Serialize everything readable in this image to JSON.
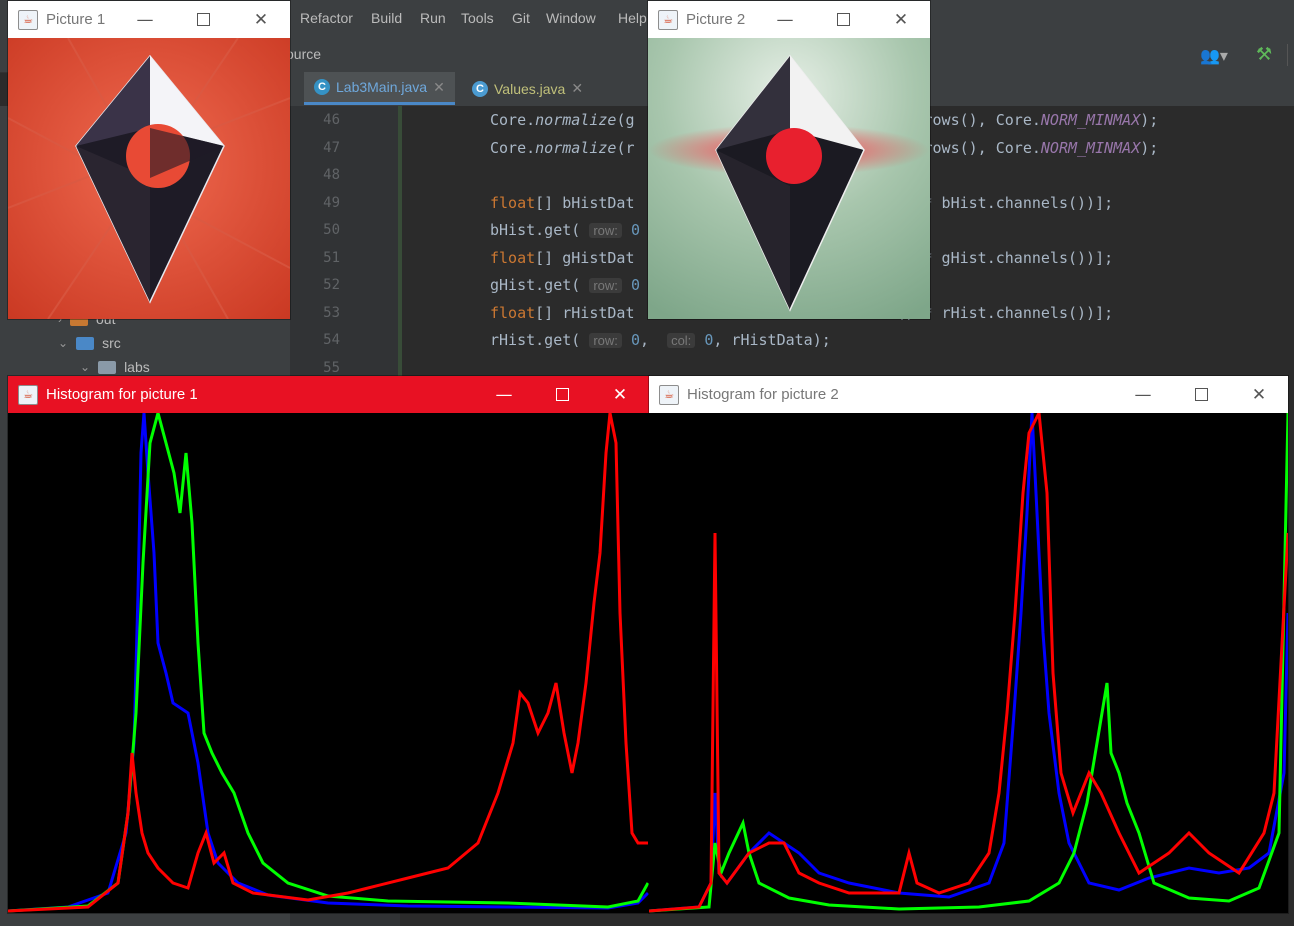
{
  "ide": {
    "menu": [
      "Refactor",
      "Build",
      "Run",
      "Tools",
      "Git",
      "Window",
      "Help"
    ],
    "breadcrumb": "ource",
    "tabs": [
      {
        "label": "Lab3Main.java",
        "active": true
      },
      {
        "label": "Values.java",
        "active": false
      }
    ],
    "project_tree": [
      {
        "label": "out",
        "level": 1,
        "expanded": false
      },
      {
        "label": "src",
        "level": 1,
        "expanded": true
      },
      {
        "label": "labs",
        "level": 2,
        "expanded": true
      }
    ],
    "line_numbers": [
      "46",
      "47",
      "48",
      "49",
      "50",
      "51",
      "52",
      "53",
      "54",
      "55"
    ]
  },
  "windows": {
    "picture1": {
      "title": "Picture 1"
    },
    "picture2": {
      "title": "Picture 2"
    },
    "hist1": {
      "title": "Histogram for picture 1"
    },
    "hist2": {
      "title": "Histogram for picture 2"
    }
  },
  "colors": {
    "accent_red": "#e81123",
    "ide_bg": "#2b2b2b",
    "panel_bg": "#3c3f41"
  }
}
